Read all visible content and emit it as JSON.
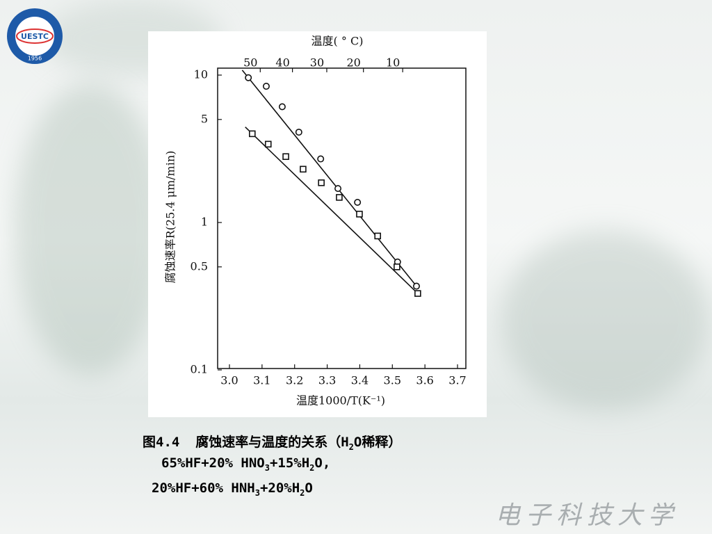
{
  "chart_data": {
    "type": "scatter",
    "x_label": "温度1000/T(K⁻¹)",
    "y_label": "腐蚀速率R(25.4 μm/min)",
    "x2_label": "温度( ° C)",
    "xlim": [
      3.0,
      3.7
    ],
    "xticks": [
      {
        "value": 3.0,
        "label": "3.0"
      },
      3.1,
      3.2,
      3.3,
      3.4,
      3.5,
      3.6,
      3.7
    ],
    "ylim": [
      0.1,
      10
    ],
    "yticks": [
      0.1,
      0.5,
      1,
      5,
      10
    ],
    "log_y": true,
    "x2ticks": [
      50,
      40,
      30,
      20,
      10
    ],
    "fit_lines": true,
    "series": [
      {
        "marker": "circle",
        "color": "#111111",
        "x": [
          3.058,
          3.113,
          3.162,
          3.213,
          3.28,
          3.333,
          3.393,
          3.516,
          3.574
        ],
        "values": [
          9.6,
          8.4,
          6.1,
          4.1,
          2.7,
          1.7,
          1.37,
          0.54,
          0.37
        ]
      },
      {
        "marker": "square",
        "color": "#111111",
        "x": [
          3.07,
          3.119,
          3.173,
          3.226,
          3.282,
          3.337,
          3.399,
          3.455,
          3.514,
          3.578
        ],
        "values": [
          4.0,
          3.4,
          2.8,
          2.3,
          1.86,
          1.48,
          1.14,
          0.81,
          0.5,
          0.33
        ]
      }
    ]
  },
  "caption": [
    [
      {
        "text": "图4.4  腐蚀速率与温度的关系（H",
        "sub": false
      },
      {
        "text": "2",
        "sub": true
      },
      {
        "text": "O稀释）",
        "sub": false
      }
    ],
    [
      {
        "text": "65%HF+20% HNO",
        "sub": false
      },
      {
        "text": "3",
        "sub": true
      },
      {
        "text": "+15%H",
        "sub": false
      },
      {
        "text": "2",
        "sub": true
      },
      {
        "text": "O,",
        "sub": false
      }
    ],
    [
      {
        "text": "20%HF+60% HNH",
        "sub": false
      },
      {
        "text": "3",
        "sub": true
      },
      {
        "text": "+20%H",
        "sub": false
      },
      {
        "text": "2",
        "sub": true
      },
      {
        "text": "O",
        "sub": false
      }
    ]
  ],
  "logo": {
    "text": "UESTC",
    "year": "1956"
  },
  "watermark": "电子科技大学"
}
